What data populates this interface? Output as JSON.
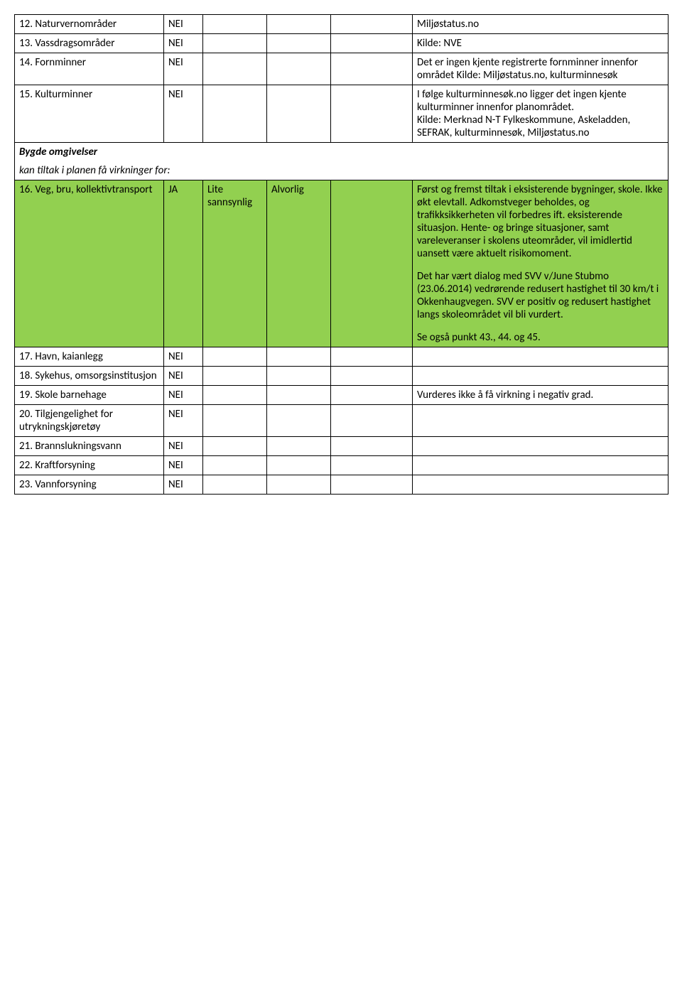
{
  "colors": {
    "green": "#92d050",
    "border": "#000000",
    "text": "#000000",
    "background": "#ffffff"
  },
  "section": {
    "title": "Bygde omgivelser",
    "subtitle": "kan tiltak i planen få virkninger for:"
  },
  "rows": {
    "r12": {
      "label": "12. Naturvernområder",
      "val": "NEI",
      "note": "Miljøstatus.no"
    },
    "r13": {
      "label": "13. Vassdragsområder",
      "val": "NEI",
      "note": "Kilde: NVE"
    },
    "r14": {
      "label": "14. Fornminner",
      "val": "NEI",
      "note": "Det er ingen kjente registrerte fornminner innenfor området Kilde: Miljøstatus.no, kulturminnesøk"
    },
    "r15": {
      "label": "15. Kulturminner",
      "val": "NEI",
      "note": "I følge kulturminnesøk.no ligger det ingen kjente kulturminner innenfor planområdet.\nKilde: Merknad N-T Fylkeskommune, Askeladden, SEFRAK, kulturminnesøk, Miljøstatus.no"
    },
    "r16": {
      "label": "16. Veg, bru, kollektivtransport",
      "val": "JA",
      "c3": "Lite sannsynlig",
      "c4": "Alvorlig",
      "note_p1": "Først og fremst tiltak i eksisterende bygninger, skole. Ikke økt elevtall. Adkomstveger beholdes, og trafikksikkerheten vil forbedres ift. eksisterende situasjon. Hente- og bringe situasjoner, samt vareleveranser i skolens uteområder, vil imidlertid uansett være aktuelt risikomoment.",
      "note_p2": "Det har vært dialog med SVV v/June Stubmo (23.06.2014) vedrørende redusert hastighet til 30 km/t i Okkenhaugvegen. SVV er positiv og redusert hastighet langs skoleområdet vil bli vurdert.",
      "note_p3": "Se også punkt 43., 44. og 45."
    },
    "r17": {
      "label": "17. Havn, kaianlegg",
      "val": "NEI"
    },
    "r18": {
      "label": "18. Sykehus, omsorgsinstitusjon",
      "val": "NEI"
    },
    "r19": {
      "label": "19. Skole barnehage",
      "val": "NEI",
      "note": "Vurderes ikke å få virkning i negativ grad."
    },
    "r20": {
      "label": "20. Tilgjengelighet for utrykningskjøretøy",
      "val": "NEI"
    },
    "r21": {
      "label": "21. Brannslukningsvann",
      "val": "NEI"
    },
    "r22": {
      "label": "22. Kraftforsyning",
      "val": "NEI"
    },
    "r23": {
      "label": "23. Vannforsyning",
      "val": "NEI"
    }
  }
}
